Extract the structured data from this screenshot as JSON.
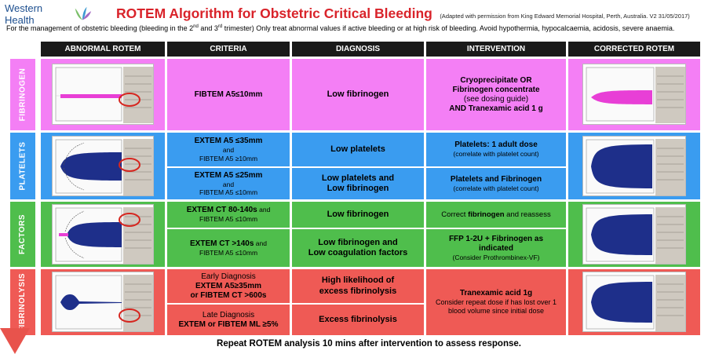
{
  "logo": {
    "text": "Western Health"
  },
  "title": "ROTEM Algorithm for Obstetric Critical Bleeding",
  "adapted": "(Adapted with permission from King Edward Memorial Hospital, Perth, Australia. V2 31/05/2017)",
  "subtitle": {
    "part1": "For the management of obstetric bleeding (bleeding in the 2",
    "sup1": "nd",
    "part2": " and 3",
    "sup2": "rd",
    "part3": " trimester) Only treat abnormal values if active bleeding or at high risk of bleeding. Avoid hypothermia, hypocalcaemia, acidosis, severe anaemia."
  },
  "headers": {
    "abnormal": "ABNORMAL ROTEM",
    "criteria": "CRITERIA",
    "diagnosis": "DIAGNOSIS",
    "intervention": "INTERVENTION",
    "corrected": "CORRECTED ROTEM"
  },
  "rows": {
    "fibrinogen": {
      "label": "FIBRINOGEN",
      "criteria": "FIBTEM A5≤10mm",
      "diagnosis": "Low fibrinogen",
      "intervention": {
        "line1": "Cryoprecipitate OR",
        "line2": "Fibrinogen concentrate",
        "line3": "(see dosing guide)",
        "line4": "AND Tranexamic acid 1 g"
      }
    },
    "platelets": {
      "label": "PLATELETS",
      "sub1": {
        "criteria1": "EXTEM A5 ≤35mm",
        "and": "and",
        "criteria2": "FIBTEM A5 ≥10mm",
        "diagnosis": "Low platelets",
        "intervention1": "Platelets: 1 adult dose",
        "intervention2": "(correlate with platelet count)"
      },
      "sub2": {
        "criteria1": "EXTEM A5 ≤25mm",
        "and": "and",
        "criteria2": "FIBTEM A5 ≤10mm",
        "diagnosis1": "Low platelets and",
        "diagnosis2": "Low fibrinogen",
        "intervention1": "Platelets and Fibrinogen",
        "intervention2": "(correlate with platelet count)"
      }
    },
    "factors": {
      "label": "FACTORS",
      "sub1": {
        "criteria1": "EXTEM CT 80-140s",
        "and": "and",
        "criteria2": "FIBTEM A5 ≤10mm",
        "diagnosis": "Low fibrinogen",
        "intervention_pre": "Correct ",
        "intervention_bold": "fibrinogen",
        "intervention_post": " and reassess"
      },
      "sub2": {
        "criteria1": "EXTEM CT >140s",
        "and": "and",
        "criteria2": "FIBTEM A5 ≤10mm",
        "diagnosis1": "Low fibrinogen and",
        "diagnosis2": "Low coagulation factors",
        "intervention1": "FFP 1-2U + Fibrinogen as",
        "intervention2": "indicated",
        "intervention3": "(Consider Prothrombinex-VF)"
      }
    },
    "fibrinolysis": {
      "label": "FIBRINOLYSIS",
      "sub1": {
        "criteria1": "Early Diagnosis",
        "criteria2": "EXTEM A5≥35mm",
        "criteria3": "or FIBTEM CT >600s",
        "diagnosis1": "High likelihood of",
        "diagnosis2": "excess fibrinolysis"
      },
      "sub2": {
        "criteria1": "Late Diagnosis",
        "criteria2": "EXTEM or FIBTEM ML ≥5%",
        "diagnosis": "Excess fibrinolysis"
      },
      "intervention1": "Tranexamic acid 1g",
      "intervention2": "Consider repeat dose if has lost over 1",
      "intervention3": "blood volume since initial dose"
    }
  },
  "footer": "Repeat ROTEM analysis 10 mins after intervention to assess response.",
  "colors": {
    "pink": "#f47ff5",
    "blue": "#3a9cf0",
    "green": "#4fbe4c",
    "red": "#ef5a55",
    "header": "#1a1a1a",
    "title": "#d9232a",
    "clot": "#1e2f8a",
    "arrow": "#e8534c"
  }
}
